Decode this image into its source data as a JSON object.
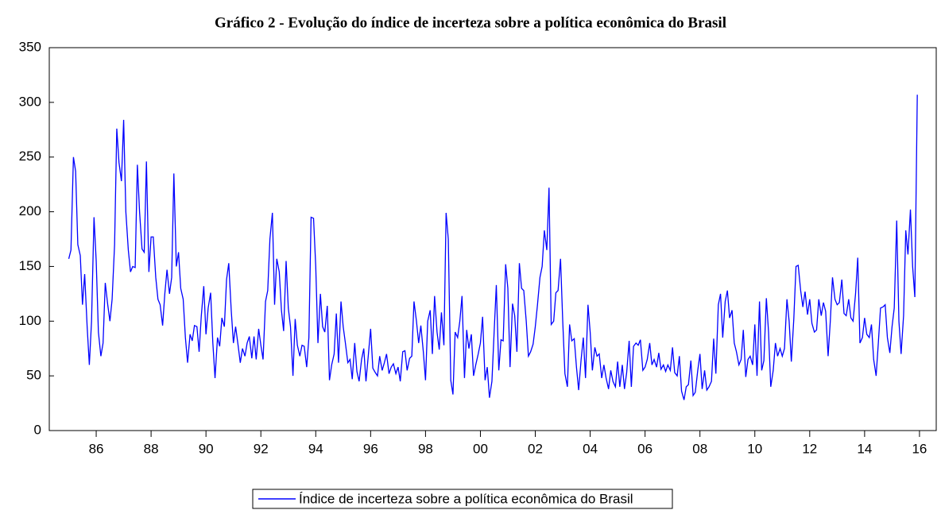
{
  "chart_data": {
    "type": "line",
    "title": "Gráfico 2 - Evolução do índice de incerteza sobre a política econômica do Brasil",
    "xlim": [
      1984.29,
      2016.61
    ],
    "xticks": [
      {
        "value": 1986,
        "label": "86"
      },
      {
        "value": 1988,
        "label": "88"
      },
      {
        "value": 1990,
        "label": "90"
      },
      {
        "value": 1992,
        "label": "92"
      },
      {
        "value": 1994,
        "label": "94"
      },
      {
        "value": 1996,
        "label": "96"
      },
      {
        "value": 1998,
        "label": "98"
      },
      {
        "value": 2000,
        "label": "00"
      },
      {
        "value": 2002,
        "label": "02"
      },
      {
        "value": 2004,
        "label": "04"
      },
      {
        "value": 2006,
        "label": "06"
      },
      {
        "value": 2008,
        "label": "08"
      },
      {
        "value": 2010,
        "label": "10"
      },
      {
        "value": 2012,
        "label": "12"
      },
      {
        "value": 2014,
        "label": "14"
      },
      {
        "value": 2016,
        "label": "16"
      }
    ],
    "ylim": [
      0,
      350
    ],
    "yticks": [
      0,
      50,
      100,
      150,
      200,
      250,
      300,
      350
    ],
    "x": [
      1985,
      1985.08,
      1985.17,
      1985.25,
      1985.33,
      1985.42,
      1985.5,
      1985.58,
      1985.67,
      1985.75,
      1985.83,
      1985.92,
      1986,
      1986.08,
      1986.17,
      1986.25,
      1986.33,
      1986.42,
      1986.5,
      1986.58,
      1986.67,
      1986.75,
      1986.83,
      1986.92,
      1987,
      1987.08,
      1987.17,
      1987.25,
      1987.33,
      1987.42,
      1987.5,
      1987.58,
      1987.67,
      1987.75,
      1987.83,
      1987.92,
      1988,
      1988.08,
      1988.17,
      1988.25,
      1988.33,
      1988.42,
      1988.5,
      1988.58,
      1988.67,
      1988.75,
      1988.83,
      1988.92,
      1989,
      1989.08,
      1989.17,
      1989.25,
      1989.33,
      1989.42,
      1989.5,
      1989.58,
      1989.67,
      1989.75,
      1989.83,
      1989.92,
      1990,
      1990.08,
      1990.17,
      1990.25,
      1990.33,
      1990.42,
      1990.5,
      1990.58,
      1990.67,
      1990.75,
      1990.83,
      1990.92,
      1991,
      1991.08,
      1991.17,
      1991.25,
      1991.33,
      1991.42,
      1991.5,
      1991.58,
      1991.67,
      1991.75,
      1991.83,
      1991.92,
      1992,
      1992.08,
      1992.17,
      1992.25,
      1992.33,
      1992.42,
      1992.5,
      1992.58,
      1992.67,
      1992.75,
      1992.83,
      1992.92,
      1993,
      1993.08,
      1993.17,
      1993.25,
      1993.33,
      1993.42,
      1993.5,
      1993.58,
      1993.67,
      1993.75,
      1993.83,
      1993.92,
      1994,
      1994.08,
      1994.17,
      1994.25,
      1994.33,
      1994.42,
      1994.5,
      1994.58,
      1994.67,
      1994.75,
      1994.83,
      1994.92,
      1995,
      1995.08,
      1995.17,
      1995.25,
      1995.33,
      1995.42,
      1995.5,
      1995.58,
      1995.67,
      1995.75,
      1995.83,
      1995.92,
      1996,
      1996.08,
      1996.17,
      1996.25,
      1996.33,
      1996.42,
      1996.5,
      1996.58,
      1996.67,
      1996.75,
      1996.83,
      1996.92,
      1997,
      1997.08,
      1997.17,
      1997.25,
      1997.33,
      1997.42,
      1997.5,
      1997.58,
      1997.67,
      1997.75,
      1997.83,
      1997.92,
      1998,
      1998.08,
      1998.17,
      1998.25,
      1998.33,
      1998.42,
      1998.5,
      1998.58,
      1998.67,
      1998.75,
      1998.83,
      1998.92,
      1999,
      1999.08,
      1999.17,
      1999.25,
      1999.33,
      1999.42,
      1999.5,
      1999.58,
      1999.67,
      1999.75,
      1999.83,
      1999.92,
      2000,
      2000.08,
      2000.17,
      2000.25,
      2000.33,
      2000.42,
      2000.5,
      2000.58,
      2000.67,
      2000.75,
      2000.83,
      2000.92,
      2001,
      2001.08,
      2001.17,
      2001.25,
      2001.33,
      2001.42,
      2001.5,
      2001.58,
      2001.67,
      2001.75,
      2001.83,
      2001.92,
      2002,
      2002.08,
      2002.17,
      2002.25,
      2002.33,
      2002.42,
      2002.5,
      2002.58,
      2002.67,
      2002.75,
      2002.83,
      2002.92,
      2003,
      2003.08,
      2003.17,
      2003.25,
      2003.33,
      2003.42,
      2003.5,
      2003.58,
      2003.67,
      2003.75,
      2003.83,
      2003.92,
      2004,
      2004.08,
      2004.17,
      2004.25,
      2004.33,
      2004.42,
      2004.5,
      2004.58,
      2004.67,
      2004.75,
      2004.83,
      2004.92,
      2005,
      2005.08,
      2005.17,
      2005.25,
      2005.33,
      2005.42,
      2005.5,
      2005.58,
      2005.67,
      2005.75,
      2005.83,
      2005.92,
      2006,
      2006.08,
      2006.17,
      2006.25,
      2006.33,
      2006.42,
      2006.5,
      2006.58,
      2006.67,
      2006.75,
      2006.83,
      2006.92,
      2007,
      2007.08,
      2007.17,
      2007.25,
      2007.33,
      2007.42,
      2007.5,
      2007.58,
      2007.67,
      2007.75,
      2007.83,
      2007.92,
      2008,
      2008.08,
      2008.17,
      2008.25,
      2008.33,
      2008.42,
      2008.5,
      2008.58,
      2008.67,
      2008.75,
      2008.83,
      2008.92,
      2009,
      2009.08,
      2009.17,
      2009.25,
      2009.33,
      2009.42,
      2009.5,
      2009.58,
      2009.67,
      2009.75,
      2009.83,
      2009.92,
      2010,
      2010.08,
      2010.17,
      2010.25,
      2010.33,
      2010.42,
      2010.5,
      2010.58,
      2010.67,
      2010.75,
      2010.83,
      2010.92,
      2011,
      2011.08,
      2011.17,
      2011.25,
      2011.33,
      2011.42,
      2011.5,
      2011.58,
      2011.67,
      2011.75,
      2011.83,
      2011.92,
      2012,
      2012.08,
      2012.17,
      2012.25,
      2012.33,
      2012.42,
      2012.5,
      2012.58,
      2012.67,
      2012.75,
      2012.83,
      2012.92,
      2013,
      2013.08,
      2013.17,
      2013.25,
      2013.33,
      2013.42,
      2013.5,
      2013.58,
      2013.67,
      2013.75,
      2013.83,
      2013.92,
      2014,
      2014.08,
      2014.17,
      2014.25,
      2014.33,
      2014.42,
      2014.5,
      2014.58,
      2014.67,
      2014.75,
      2014.83,
      2014.92,
      2015,
      2015.08,
      2015.17,
      2015.25,
      2015.33,
      2015.42,
      2015.5,
      2015.58,
      2015.67,
      2015.75,
      2015.83,
      2015.92
    ],
    "series": [
      {
        "name": "Índice de incerteza sobre a política econômica do Brasil",
        "color": "#0000ff",
        "values": [
          157,
          165,
          250,
          237,
          170,
          160,
          115,
          143,
          95,
          60,
          100,
          195,
          155,
          90,
          68,
          80,
          135,
          115,
          100,
          120,
          170,
          276,
          245,
          228,
          284,
          200,
          165,
          145,
          150,
          149,
          243,
          200,
          166,
          163,
          246,
          145,
          177,
          177,
          140,
          120,
          115,
          96,
          125,
          147,
          125,
          140,
          235,
          150,
          163,
          130,
          120,
          85,
          62,
          88,
          82,
          96,
          95,
          72,
          105,
          132,
          88,
          112,
          126,
          80,
          48,
          85,
          77,
          103,
          95,
          138,
          153,
          110,
          80,
          95,
          78,
          62,
          75,
          68,
          80,
          86,
          66,
          86,
          65,
          93,
          78,
          65,
          118,
          128,
          175,
          199,
          115,
          157,
          145,
          110,
          91,
          155,
          112,
          95,
          50,
          102,
          78,
          68,
          78,
          77,
          58,
          85,
          195,
          194,
          150,
          80,
          125,
          95,
          90,
          114,
          46,
          60,
          70,
          107,
          62,
          118,
          95,
          80,
          62,
          65,
          47,
          80,
          54,
          45,
          65,
          75,
          45,
          70,
          93,
          57,
          53,
          50,
          68,
          55,
          62,
          70,
          52,
          58,
          61,
          52,
          58,
          45,
          72,
          73,
          55,
          66,
          68,
          118,
          100,
          80,
          96,
          72,
          46,
          100,
          110,
          70,
          123,
          90,
          74,
          108,
          78,
          199,
          175,
          46,
          33,
          90,
          85,
          100,
          123,
          48,
          92,
          75,
          88,
          50,
          60,
          70,
          80,
          104,
          46,
          58,
          30,
          45,
          90,
          133,
          55,
          83,
          82,
          152,
          130,
          58,
          116,
          105,
          72,
          153,
          130,
          128,
          100,
          68,
          72,
          79,
          95,
          115,
          140,
          150,
          183,
          165,
          222,
          97,
          100,
          126,
          128,
          157,
          100,
          52,
          40,
          97,
          82,
          84,
          58,
          37,
          65,
          85,
          48,
          115,
          90,
          55,
          76,
          68,
          70,
          48,
          60,
          48,
          38,
          55,
          45,
          40,
          63,
          40,
          60,
          38,
          53,
          82,
          40,
          77,
          80,
          78,
          83,
          55,
          58,
          65,
          80,
          60,
          65,
          58,
          71,
          56,
          60,
          54,
          60,
          55,
          76,
          53,
          50,
          68,
          36,
          28,
          40,
          42,
          64,
          32,
          35,
          55,
          70,
          38,
          55,
          37,
          40,
          45,
          84,
          52,
          115,
          125,
          85,
          118,
          128,
          103,
          110,
          80,
          72,
          60,
          65,
          92,
          49,
          65,
          68,
          60,
          97,
          50,
          118,
          55,
          64,
          121,
          90,
          40,
          55,
          80,
          68,
          75,
          68,
          75,
          120,
          100,
          63,
          102,
          150,
          151,
          128,
          113,
          127,
          106,
          120,
          98,
          90,
          92,
          120,
          105,
          117,
          109,
          68,
          100,
          140,
          120,
          115,
          117,
          138,
          107,
          105,
          120,
          103,
          100,
          125,
          158,
          80,
          85,
          103,
          88,
          85,
          97,
          65,
          50,
          80,
          112,
          113,
          115,
          85,
          71,
          95,
          112,
          192,
          100,
          70,
          105,
          183,
          161,
          202,
          150,
          122,
          307
        ]
      }
    ],
    "legend": "bottom"
  }
}
